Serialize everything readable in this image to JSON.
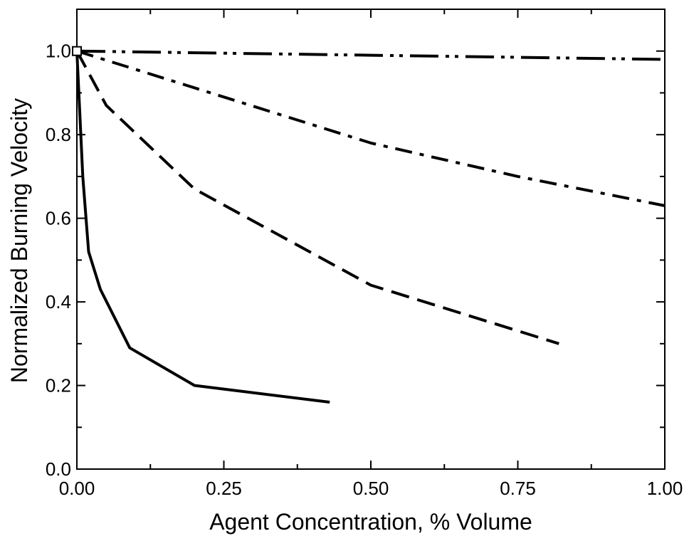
{
  "chart_data": {
    "type": "line",
    "xlabel": "Agent Concentration, % Volume",
    "ylabel": "Normalized Burning Velocity",
    "xlim": [
      0,
      1
    ],
    "ylim": [
      0,
      1.1
    ],
    "x_ticks": [
      0,
      0.25,
      0.5,
      0.75,
      1
    ],
    "x_tick_labels": [
      "0.00",
      "0.25",
      "0.50",
      "0.75",
      "1.00"
    ],
    "y_ticks": [
      0,
      0.2,
      0.4,
      0.6,
      0.8,
      1
    ],
    "y_tick_labels": [
      "0.0",
      "0.2",
      "0.4",
      "0.6",
      "0.8",
      "1.0"
    ],
    "grid": false,
    "legend": "none",
    "series": [
      {
        "style": "solid",
        "x": [
          0,
          0.01,
          0.02,
          0.04,
          0.09,
          0.2,
          0.43
        ],
        "y": [
          1.0,
          0.7,
          0.52,
          0.43,
          0.29,
          0.2,
          0.16
        ]
      },
      {
        "style": "dashed",
        "x": [
          0,
          0.05,
          0.2,
          0.5,
          0.82
        ],
        "y": [
          1.0,
          0.87,
          0.67,
          0.44,
          0.3
        ]
      },
      {
        "style": "dash-dot",
        "x": [
          0,
          0.25,
          0.5,
          0.75,
          1.0
        ],
        "y": [
          1.0,
          0.89,
          0.78,
          0.7,
          0.63
        ]
      },
      {
        "style": "dash-dot-dot",
        "x": [
          0,
          0.25,
          0.5,
          0.75,
          1.0
        ],
        "y": [
          1.0,
          0.995,
          0.99,
          0.985,
          0.98
        ]
      }
    ],
    "markers": [
      {
        "x": 0,
        "y": 1.0,
        "shape": "open-square"
      }
    ]
  }
}
